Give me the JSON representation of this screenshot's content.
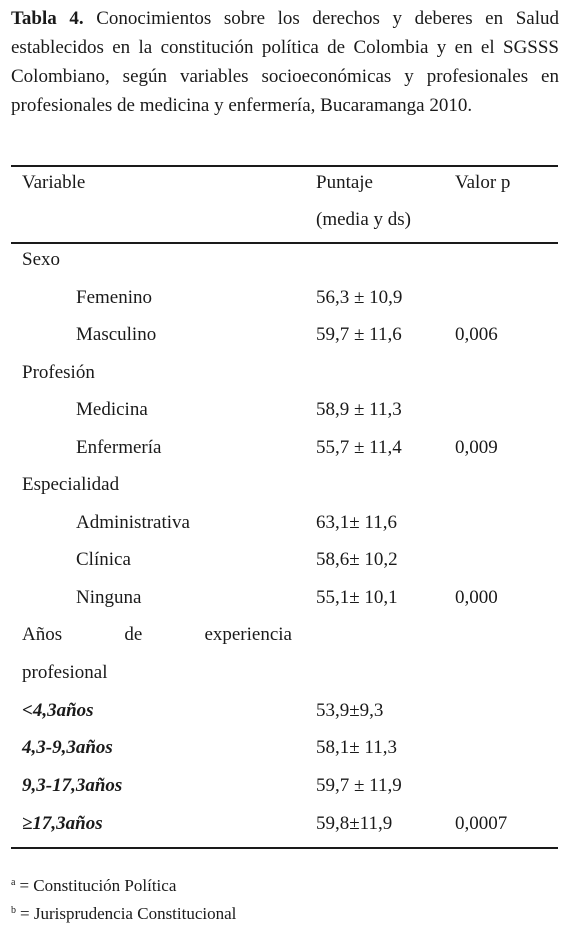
{
  "caption": {
    "label": "Tabla 4.",
    "text": "Conocimientos sobre los derechos y deberes en Salud establecidos en la constitución política de Colombia y en el SGSSS Colombiano, según variables socioeconómicas y profesionales en profesionales de medicina y enfermería, Bucaramanga 2010."
  },
  "table": {
    "headers": {
      "variable": "Variable",
      "score_line1": "Puntaje",
      "score_line2": "(media y ds)",
      "pvalue": "Valor p"
    },
    "groups": {
      "sexo": {
        "label": "Sexo",
        "rows": [
          {
            "label": "Femenino",
            "score": "56,3 ± 10,9",
            "p": ""
          },
          {
            "label": "Masculino",
            "score": "59,7 ± 11,6",
            "p": "0,006"
          }
        ]
      },
      "profesion": {
        "label": "Profesión",
        "rows": [
          {
            "label": "Medicina",
            "score": "58,9 ± 11,3",
            "p": ""
          },
          {
            "label": "Enfermería",
            "score": "55,7 ± 11,4",
            "p": "0,009"
          }
        ]
      },
      "especialidad": {
        "label": "Especialidad",
        "rows": [
          {
            "label": "Administrativa",
            "score": "63,1± 11,6",
            "p": ""
          },
          {
            "label": "Clínica",
            "score": "58,6± 10,2",
            "p": ""
          },
          {
            "label": "Ninguna",
            "score": "55,1± 10,1",
            "p": "0,000"
          }
        ]
      },
      "experiencia": {
        "label_words": [
          "Años",
          "de",
          "experiencia"
        ],
        "label_line2": "profesional",
        "rows": [
          {
            "label": "<4,3años",
            "score": "53,9±9,3",
            "p": ""
          },
          {
            "label": "4,3-9,3años",
            "score": "58,1± 11,3",
            "p": ""
          },
          {
            "label": "9,3-17,3años",
            "score": "59,7 ± 11,9",
            "p": ""
          },
          {
            "label": "≥17,3años",
            "score": "59,8±11,9",
            "p": "0,0007"
          }
        ]
      }
    }
  },
  "footnotes": [
    {
      "mark": "a",
      "text": "= Constitución Política"
    },
    {
      "mark": "b",
      "text": "= Jurisprudencia Constitucional"
    }
  ]
}
